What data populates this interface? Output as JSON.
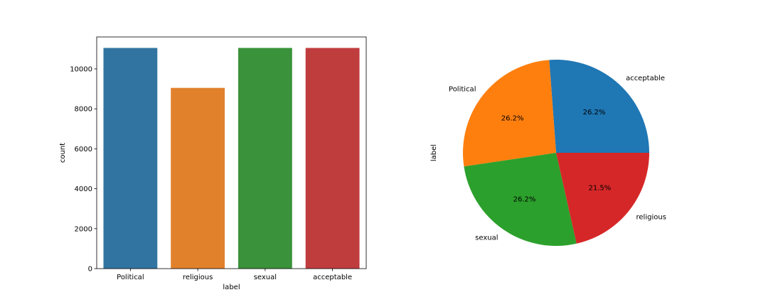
{
  "chart_data": [
    {
      "type": "bar",
      "xlabel": "label",
      "ylabel": "count",
      "categories": [
        "Political",
        "religious",
        "sexual",
        "acceptable"
      ],
      "values": [
        11050,
        9050,
        11050,
        11050
      ],
      "ylim": [
        0,
        11600
      ],
      "yticks": [
        0,
        2000,
        4000,
        6000,
        8000,
        10000
      ],
      "colors": [
        "#3274a1",
        "#e1812c",
        "#3a923a",
        "#c03d3e"
      ],
      "grid": false
    },
    {
      "type": "pie",
      "ylabel": "label",
      "slices": [
        {
          "label": "acceptable",
          "value": 26.2,
          "pct_label": "26.2%",
          "color": "#1f77b4"
        },
        {
          "label": "Political",
          "value": 26.2,
          "pct_label": "26.2%",
          "color": "#ff7f0e"
        },
        {
          "label": "sexual",
          "value": 26.2,
          "pct_label": "26.2%",
          "color": "#2ca02c"
        },
        {
          "label": "religious",
          "value": 21.5,
          "pct_label": "21.5%",
          "color": "#d62728"
        }
      ]
    }
  ]
}
